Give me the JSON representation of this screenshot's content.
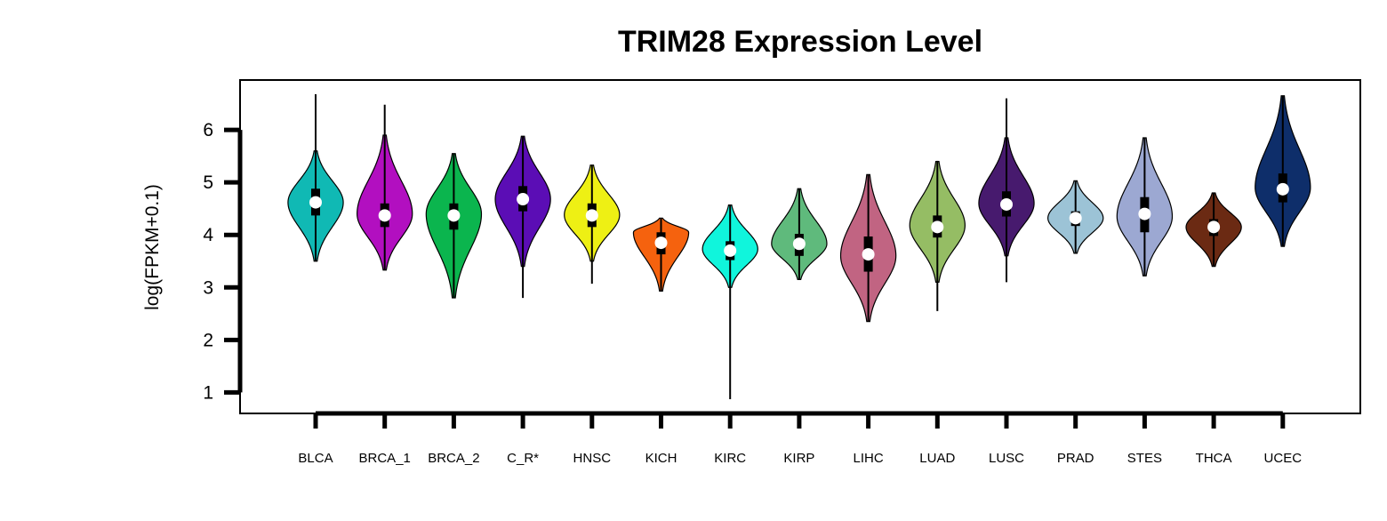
{
  "chart_data": {
    "type": "violin",
    "title": "TRIM28 Expression Level",
    "ylabel": "log(FPKM+0.1)",
    "xlabel": "",
    "ylim": [
      0.6,
      6.95
    ],
    "yticks": [
      1,
      2,
      3,
      4,
      5,
      6
    ],
    "grid": false,
    "legend": "none",
    "categories": [
      "BLCA",
      "BRCA_1",
      "BRCA_2",
      "C_R*",
      "HNSC",
      "KICH",
      "KIRC",
      "KIRP",
      "LIHC",
      "LUAD",
      "LUSC",
      "PRAD",
      "STES",
      "THCA",
      "UCEC"
    ],
    "series": [
      {
        "category": "BLCA",
        "color": "#10b9b4",
        "min": 3.5,
        "q1": 4.37,
        "median": 4.62,
        "q3": 4.88,
        "max": 6.68,
        "violin_low": 3.5,
        "violin_high": 5.6,
        "mode": 4.62,
        "half_width": 0.4
      },
      {
        "category": "BRCA_1",
        "color": "#b20fc0",
        "min": 3.33,
        "q1": 4.15,
        "median": 4.37,
        "q3": 4.6,
        "max": 6.48,
        "violin_low": 3.33,
        "violin_high": 5.9,
        "mode": 4.4,
        "half_width": 0.4
      },
      {
        "category": "BRCA_2",
        "color": "#0bb54e",
        "min": 2.8,
        "q1": 4.1,
        "median": 4.37,
        "q3": 4.6,
        "max": 5.55,
        "violin_low": 2.8,
        "violin_high": 5.55,
        "mode": 4.4,
        "half_width": 0.4
      },
      {
        "category": "C_R*",
        "color": "#5b0db5",
        "min": 2.8,
        "q1": 4.45,
        "median": 4.68,
        "q3": 4.93,
        "max": 5.88,
        "violin_low": 3.4,
        "violin_high": 5.88,
        "mode": 4.68,
        "half_width": 0.4
      },
      {
        "category": "HNSC",
        "color": "#eef014",
        "min": 3.07,
        "q1": 4.15,
        "median": 4.37,
        "q3": 4.6,
        "max": 5.33,
        "violin_low": 3.5,
        "violin_high": 5.33,
        "mode": 4.38,
        "half_width": 0.4
      },
      {
        "category": "KICH",
        "color": "#f5620e",
        "min": 2.93,
        "q1": 3.63,
        "median": 3.85,
        "q3": 4.05,
        "max": 4.32,
        "violin_low": 2.93,
        "violin_high": 4.32,
        "mode": 4.05,
        "half_width": 0.4
      },
      {
        "category": "KIRC",
        "color": "#10f5dc",
        "min": 0.87,
        "q1": 3.52,
        "median": 3.7,
        "q3": 3.88,
        "max": 4.57,
        "violin_low": 3.0,
        "violin_high": 4.57,
        "mode": 3.73,
        "half_width": 0.4
      },
      {
        "category": "KIRP",
        "color": "#5fba7c",
        "min": 3.15,
        "q1": 3.6,
        "median": 3.83,
        "q3": 4.02,
        "max": 4.88,
        "violin_low": 3.15,
        "violin_high": 4.88,
        "mode": 3.83,
        "half_width": 0.4
      },
      {
        "category": "LIHC",
        "color": "#c16482",
        "min": 2.35,
        "q1": 3.3,
        "median": 3.63,
        "q3": 3.97,
        "max": 5.15,
        "violin_low": 2.35,
        "violin_high": 5.15,
        "mode": 3.6,
        "half_width": 0.4
      },
      {
        "category": "LUAD",
        "color": "#95bd64",
        "min": 2.55,
        "q1": 3.95,
        "median": 4.15,
        "q3": 4.37,
        "max": 5.4,
        "violin_low": 3.1,
        "violin_high": 5.4,
        "mode": 4.18,
        "half_width": 0.4
      },
      {
        "category": "LUSC",
        "color": "#471a6e",
        "min": 3.1,
        "q1": 4.35,
        "median": 4.58,
        "q3": 4.83,
        "max": 6.6,
        "violin_low": 3.6,
        "violin_high": 5.85,
        "mode": 4.6,
        "half_width": 0.4
      },
      {
        "category": "PRAD",
        "color": "#9cc3d6",
        "min": 3.65,
        "q1": 4.17,
        "median": 4.32,
        "q3": 4.45,
        "max": 5.03,
        "violin_low": 3.65,
        "violin_high": 5.03,
        "mode": 4.32,
        "half_width": 0.4
      },
      {
        "category": "STES",
        "color": "#9ca8d2",
        "min": 3.22,
        "q1": 4.05,
        "median": 4.4,
        "q3": 4.72,
        "max": 5.85,
        "violin_low": 3.22,
        "violin_high": 5.85,
        "mode": 4.35,
        "half_width": 0.4
      },
      {
        "category": "THCA",
        "color": "#6b2a13",
        "min": 3.4,
        "q1": 3.98,
        "median": 4.15,
        "q3": 4.3,
        "max": 4.8,
        "violin_low": 3.4,
        "violin_high": 4.8,
        "mode": 4.15,
        "half_width": 0.4
      },
      {
        "category": "UCEC",
        "color": "#0e2e6a",
        "min": 3.78,
        "q1": 4.62,
        "median": 4.87,
        "q3": 5.17,
        "max": 6.65,
        "violin_low": 3.78,
        "violin_high": 6.65,
        "mode": 4.9,
        "half_width": 0.4
      }
    ]
  }
}
